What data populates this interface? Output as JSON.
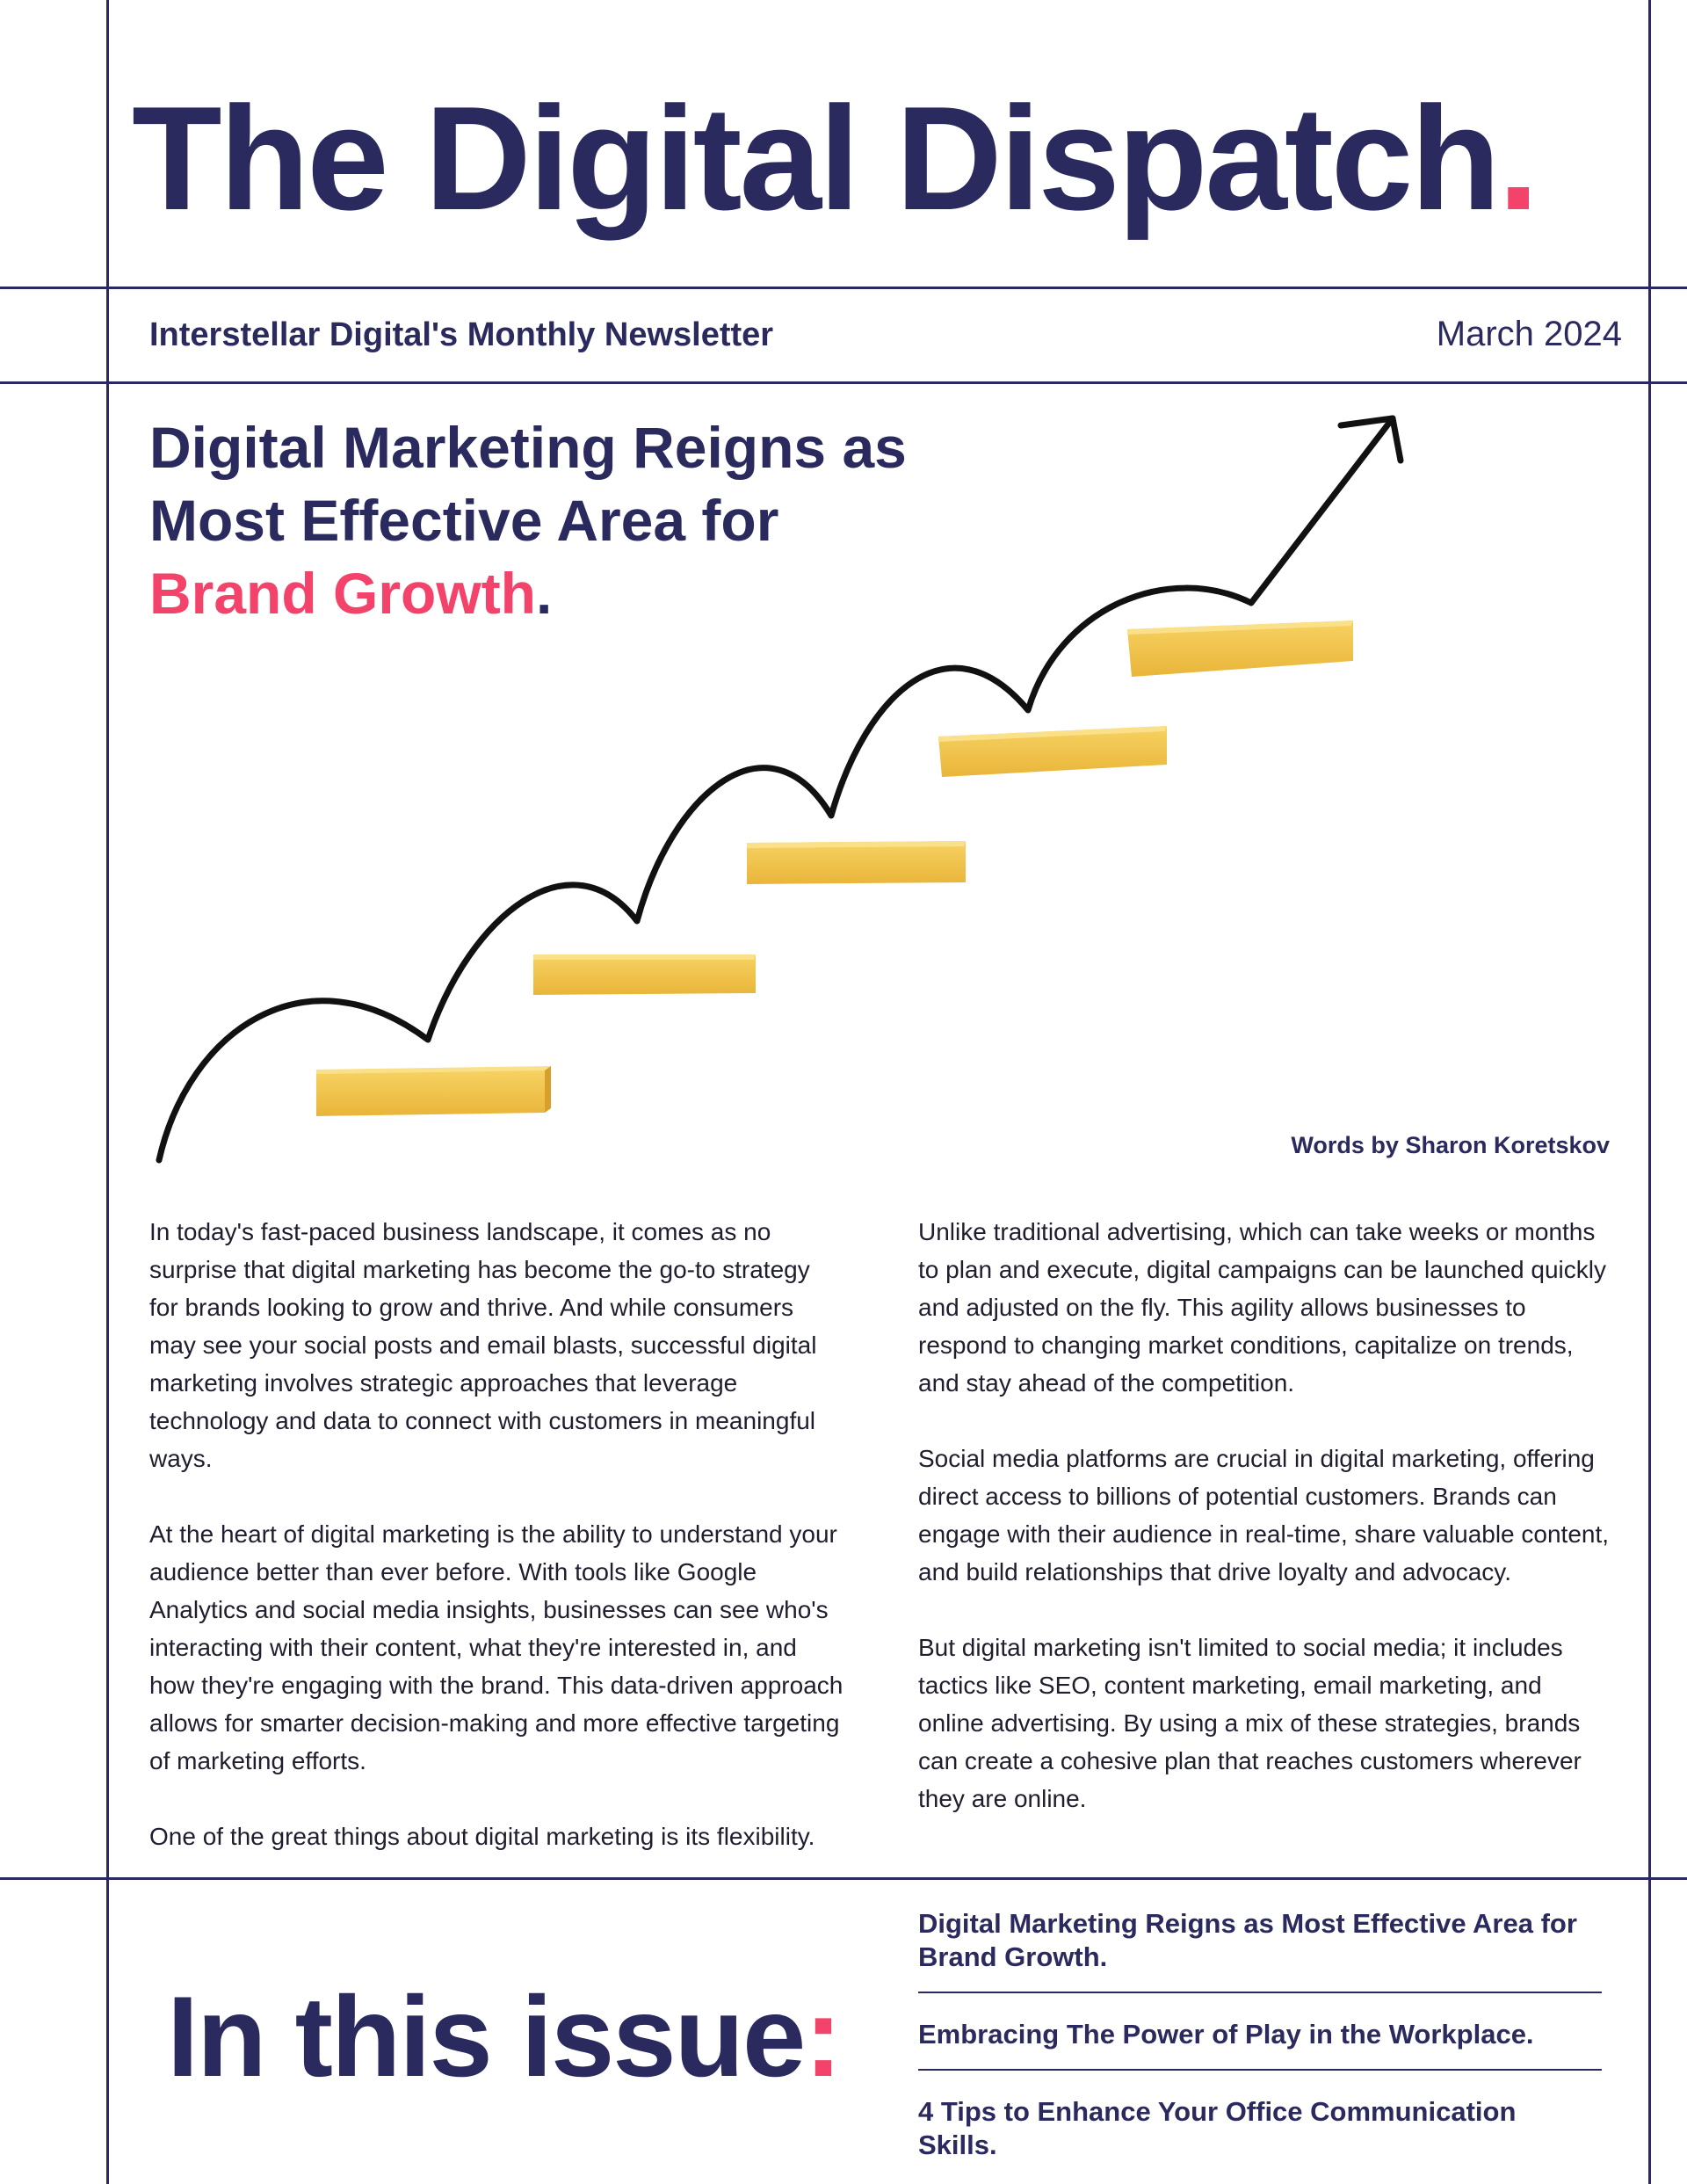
{
  "masthead": {
    "title": "The Digital Dispatch",
    "title_dot": "."
  },
  "subheader": {
    "newsletter": "Interstellar Digital's Monthly Newsletter",
    "date": "March 2024"
  },
  "feature": {
    "headline_line1": "Digital Marketing Reigns as",
    "headline_line2": "Most Effective Area for",
    "headline_highlight": "Brand Growth",
    "headline_end": ".",
    "byline": "Words by Sharon Koretskov",
    "left_column": [
      "In today's fast-paced business landscape, it comes as no surprise that digital marketing has become the go-to strategy for brands looking to grow and thrive. And while consumers may see your social posts and email blasts, successful digital marketing involves strategic approaches that leverage technology and data to connect with customers in meaningful ways.",
      "At the heart of digital marketing is the ability to understand your audience better than ever before. With tools like Google Analytics and social media insights, businesses can see who's interacting with their content, what they're interested in, and how they're engaging with the brand. This data-driven approach allows for smarter decision-making and more effective targeting of marketing efforts.",
      "One of the great things about digital marketing is its flexibility."
    ],
    "right_column": [
      "Unlike traditional advertising, which can take weeks or months to plan and execute, digital campaigns can be launched quickly and adjusted on the fly. This agility allows businesses to respond to changing market conditions, capitalize on trends, and stay ahead of the competition.",
      "Social media platforms are crucial in digital marketing, offering direct access to billions of potential customers. Brands can engage with their audience in real-time, share valuable content, and build relationships that drive loyalty and advocacy.",
      "But digital marketing isn't limited to social media; it includes tactics like SEO, content marketing, email marketing, and online advertising. By using a mix of these strategies, brands can create a cohesive plan that reaches customers wherever they are online."
    ]
  },
  "issue": {
    "heading": "In this issue",
    "heading_colon": ":",
    "items": [
      "Digital Marketing Reigns as Most Effective Area for Brand Growth.",
      "Embracing The Power of Play in the Workplace.",
      "4 Tips to Enhance Your Office Communication Skills."
    ]
  },
  "colors": {
    "navy": "#2a2a5e",
    "accent_pink": "#f4436a",
    "block_gold": "#f2c445"
  }
}
